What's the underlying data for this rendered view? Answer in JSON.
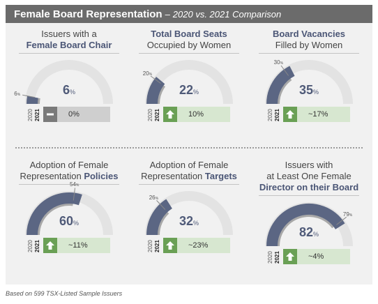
{
  "header": {
    "title": "Female Board Representation",
    "separator": "–",
    "subtitle": "2020 vs. 2021 Comparison"
  },
  "colors": {
    "header_bg": "#6b6b6b",
    "track": "#e3e3e3",
    "prev_year_arc": "#a8a8a8",
    "current_year_arc": "#5b6683",
    "increase_icon": "#6aa055",
    "increase_bg": "#d7e7d0",
    "no_change_icon": "#7a7a7a",
    "no_change_bg": "#cfcfcf"
  },
  "labels": {
    "year_prev": "2020",
    "year_curr": "2021",
    "pct": "%"
  },
  "chart_data": [
    {
      "type": "gauge",
      "title_lines": [
        [
          "Issuers with a"
        ],
        [
          "Female Board Chair"
        ]
      ],
      "title_bold": [
        [
          false
        ],
        [
          true
        ]
      ],
      "value_2020": 6,
      "value_2021": 6,
      "range": [
        0,
        100
      ],
      "change": "0%",
      "change_dir": "flat"
    },
    {
      "type": "gauge",
      "title_lines": [
        [
          "Total Board Seats"
        ],
        [
          "Occupied by Women"
        ]
      ],
      "title_bold": [
        [
          true
        ],
        [
          false
        ]
      ],
      "value_2020": 20,
      "value_2021": 22,
      "range": [
        0,
        100
      ],
      "change": "10%",
      "change_dir": "up"
    },
    {
      "type": "gauge",
      "title_lines": [
        [
          "Board Vacancies"
        ],
        [
          "Filled by Women"
        ]
      ],
      "title_bold": [
        [
          true
        ],
        [
          false
        ]
      ],
      "value_2020": 30,
      "value_2021": 35,
      "range": [
        0,
        100
      ],
      "change": "~17%",
      "change_dir": "up"
    },
    {
      "type": "gauge",
      "title_lines": [
        [
          "Adoption of Female"
        ],
        [
          "Representation ",
          "Policies"
        ]
      ],
      "title_bold": [
        [
          false
        ],
        [
          false,
          true
        ]
      ],
      "value_2020": 54,
      "value_2021": 60,
      "range": [
        0,
        100
      ],
      "change": "~11%",
      "change_dir": "up"
    },
    {
      "type": "gauge",
      "title_lines": [
        [
          "Adoption of Female"
        ],
        [
          "Representation ",
          "Targets"
        ]
      ],
      "title_bold": [
        [
          false
        ],
        [
          false,
          true
        ]
      ],
      "value_2020": 26,
      "value_2021": 32,
      "range": [
        0,
        100
      ],
      "change": "~23%",
      "change_dir": "up"
    },
    {
      "type": "gauge",
      "title_lines": [
        [
          "Issuers with"
        ],
        [
          "at Least One Female"
        ],
        [
          "Director on their Board"
        ]
      ],
      "title_bold": [
        [
          false
        ],
        [
          false
        ],
        [
          true
        ]
      ],
      "value_2020": 79,
      "value_2021": 82,
      "range": [
        0,
        100
      ],
      "change": "~4%",
      "change_dir": "up"
    }
  ],
  "footnote": "Based on 599 TSX-Listed Sample Issuers"
}
